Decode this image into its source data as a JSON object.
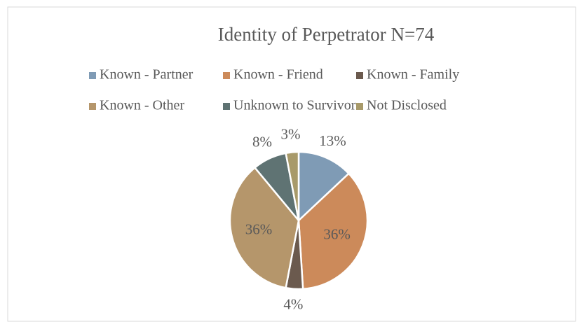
{
  "chart_data": {
    "type": "pie",
    "title": "Identity of Perpetrator N=74",
    "categories": [
      "Known - Partner",
      "Known - Friend",
      "Known - Family",
      "Known - Other",
      "Unknown to Survivor",
      "Not Disclosed"
    ],
    "values": [
      13,
      36,
      4,
      36,
      8,
      3
    ],
    "value_labels": [
      "13%",
      "36%",
      "4%",
      "36%",
      "8%",
      "3%"
    ],
    "colors": [
      "#7f9bb5",
      "#cc8a5a",
      "#6b5a4e",
      "#b5966b",
      "#5f7373",
      "#a89a6a"
    ],
    "legend": "top"
  }
}
